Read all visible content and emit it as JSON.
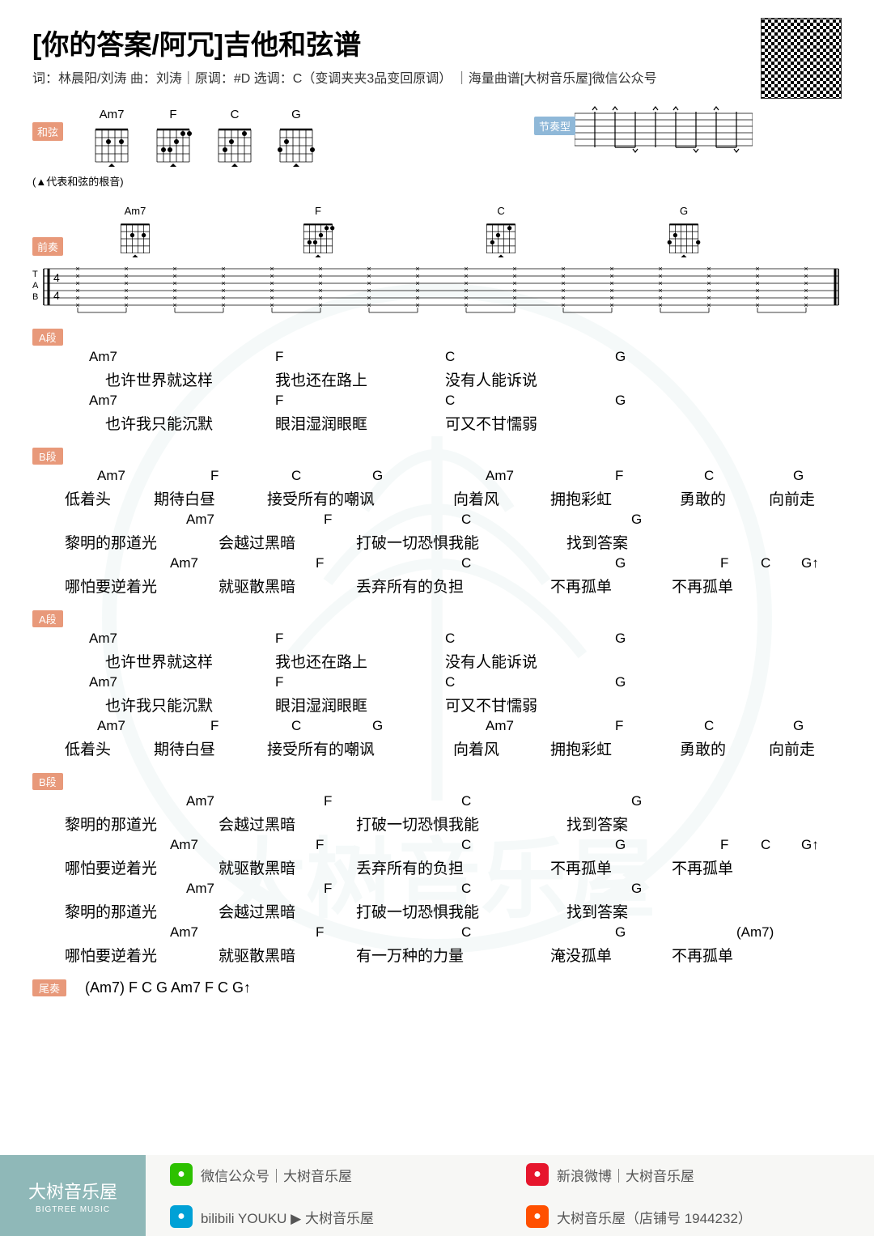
{
  "header": {
    "title": "[你的答案/阿冗]吉他和弦谱",
    "subtitle": "词：林晨阳/刘涛 曲：刘涛｜原调：#D 选调：C（变调夹夹3品变回原调）  ｜海量曲谱[大树音乐屋]微信公众号"
  },
  "badges": {
    "hexian": "和弦",
    "jiezou": "节奏型",
    "qianzou": "前奏"
  },
  "chord_diagrams": [
    "Am7",
    "F",
    "C",
    "G"
  ],
  "root_note": "(▲代表和弦的根音)",
  "sections": [
    {
      "label": "A段",
      "lines": [
        {
          "chords": [
            [
              "Am7",
              70
            ],
            [
              "F",
              300
            ],
            [
              "C",
              510
            ],
            [
              "G",
              720
            ]
          ],
          "lyrics": [
            [
              "也许世界就这样",
              90
            ],
            [
              "我也还在路上",
              300
            ],
            [
              "没有人能诉说",
              510
            ]
          ]
        },
        {
          "chords": [
            [
              "Am7",
              70
            ],
            [
              "F",
              300
            ],
            [
              "C",
              510
            ],
            [
              "G",
              720
            ]
          ],
          "lyrics": [
            [
              "也许我只能沉默",
              90
            ],
            [
              "眼泪湿润眼眶",
              300
            ],
            [
              "可又不甘懦弱",
              510
            ]
          ]
        }
      ]
    },
    {
      "label": "B段",
      "lines": [
        {
          "chords": [
            [
              "Am7",
              80
            ],
            [
              "F",
              220
            ],
            [
              "C",
              320
            ],
            [
              "G",
              420
            ],
            [
              "Am7",
              560
            ],
            [
              "F",
              720
            ],
            [
              "C",
              830
            ],
            [
              "G",
              940
            ]
          ],
          "lyrics": [
            [
              "低着头",
              40
            ],
            [
              "期待白昼",
              150
            ],
            [
              "接受所有的嘲讽",
              290
            ],
            [
              "向着风",
              520
            ],
            [
              "拥抱彩虹",
              640
            ],
            [
              "勇敢的",
              800
            ],
            [
              "向前走",
              910
            ]
          ]
        },
        {
          "chords": [
            [
              "Am7",
              190
            ],
            [
              "F",
              360
            ],
            [
              "C",
              530
            ],
            [
              "G",
              740
            ]
          ],
          "lyrics": [
            [
              "黎明的那道光",
              40
            ],
            [
              "会越过黑暗",
              230
            ],
            [
              "打破一切恐惧我能",
              400
            ],
            [
              "找到答案",
              660
            ]
          ]
        },
        {
          "chords": [
            [
              "Am7",
              170
            ],
            [
              "F",
              350
            ],
            [
              "C",
              530
            ],
            [
              "G",
              720
            ],
            [
              "F",
              850
            ],
            [
              "C",
              900
            ],
            [
              "G↑",
              950
            ]
          ],
          "lyrics": [
            [
              "哪怕要逆着光",
              40
            ],
            [
              "就驱散黑暗",
              230
            ],
            [
              "丢弃所有的负担",
              400
            ],
            [
              "不再孤单",
              640
            ],
            [
              "不再孤单",
              790
            ]
          ]
        }
      ]
    },
    {
      "label": "A段",
      "lines": [
        {
          "chords": [
            [
              "Am7",
              70
            ],
            [
              "F",
              300
            ],
            [
              "C",
              510
            ],
            [
              "G",
              720
            ]
          ],
          "lyrics": [
            [
              "也许世界就这样",
              90
            ],
            [
              "我也还在路上",
              300
            ],
            [
              "没有人能诉说",
              510
            ]
          ]
        },
        {
          "chords": [
            [
              "Am7",
              70
            ],
            [
              "F",
              300
            ],
            [
              "C",
              510
            ],
            [
              "G",
              720
            ]
          ],
          "lyrics": [
            [
              "也许我只能沉默",
              90
            ],
            [
              "眼泪湿润眼眶",
              300
            ],
            [
              "可又不甘懦弱",
              510
            ]
          ]
        },
        {
          "chords": [
            [
              "Am7",
              80
            ],
            [
              "F",
              220
            ],
            [
              "C",
              320
            ],
            [
              "G",
              420
            ],
            [
              "Am7",
              560
            ],
            [
              "F",
              720
            ],
            [
              "C",
              830
            ],
            [
              "G",
              940
            ]
          ],
          "lyrics": [
            [
              "低着头",
              40
            ],
            [
              "期待白昼",
              150
            ],
            [
              "接受所有的嘲讽",
              290
            ],
            [
              "向着风",
              520
            ],
            [
              "拥抱彩虹",
              640
            ],
            [
              "勇敢的",
              800
            ],
            [
              "向前走",
              910
            ]
          ]
        }
      ]
    },
    {
      "label": "B段",
      "lines": [
        {
          "chords": [
            [
              "Am7",
              190
            ],
            [
              "F",
              360
            ],
            [
              "C",
              530
            ],
            [
              "G",
              740
            ]
          ],
          "lyrics": [
            [
              "黎明的那道光",
              40
            ],
            [
              "会越过黑暗",
              230
            ],
            [
              "打破一切恐惧我能",
              400
            ],
            [
              "找到答案",
              660
            ]
          ]
        },
        {
          "chords": [
            [
              "Am7",
              170
            ],
            [
              "F",
              350
            ],
            [
              "C",
              530
            ],
            [
              "G",
              720
            ],
            [
              "F",
              850
            ],
            [
              "C",
              900
            ],
            [
              "G↑",
              950
            ]
          ],
          "lyrics": [
            [
              "哪怕要逆着光",
              40
            ],
            [
              "就驱散黑暗",
              230
            ],
            [
              "丢弃所有的负担",
              400
            ],
            [
              "不再孤单",
              640
            ],
            [
              "不再孤单",
              790
            ]
          ]
        },
        {
          "chords": [
            [
              "Am7",
              190
            ],
            [
              "F",
              360
            ],
            [
              "C",
              530
            ],
            [
              "G",
              740
            ]
          ],
          "lyrics": [
            [
              "黎明的那道光",
              40
            ],
            [
              "会越过黑暗",
              230
            ],
            [
              "打破一切恐惧我能",
              400
            ],
            [
              "找到答案",
              660
            ]
          ]
        },
        {
          "chords": [
            [
              "Am7",
              170
            ],
            [
              "F",
              350
            ],
            [
              "C",
              530
            ],
            [
              "G",
              720
            ],
            [
              "(Am7)",
              870
            ]
          ],
          "lyrics": [
            [
              "哪怕要逆着光",
              40
            ],
            [
              "就驱散黑暗",
              230
            ],
            [
              "有一万种的力量",
              400
            ],
            [
              "淹没孤单",
              640
            ],
            [
              "不再孤单",
              790
            ]
          ]
        }
      ]
    }
  ],
  "outro": {
    "label": "尾奏",
    "text": "(Am7)    F    C    G    Am7    F    C    G↑"
  },
  "footer": {
    "brand_cn": "大树音乐屋",
    "brand_en": "BIGTREE MUSIC",
    "items": [
      {
        "icon": "wx",
        "text": "微信公众号｜大树音乐屋"
      },
      {
        "icon": "wb",
        "text": "新浪微博｜大树音乐屋"
      },
      {
        "icon": "bl",
        "text": "bilibili YOUKU ▶ 大树音乐屋"
      },
      {
        "icon": "tb",
        "text": "大树音乐屋（店铺号 1944232）"
      }
    ]
  },
  "colors": {
    "badge": "#e8997a",
    "accent": "#8fb8b8"
  }
}
